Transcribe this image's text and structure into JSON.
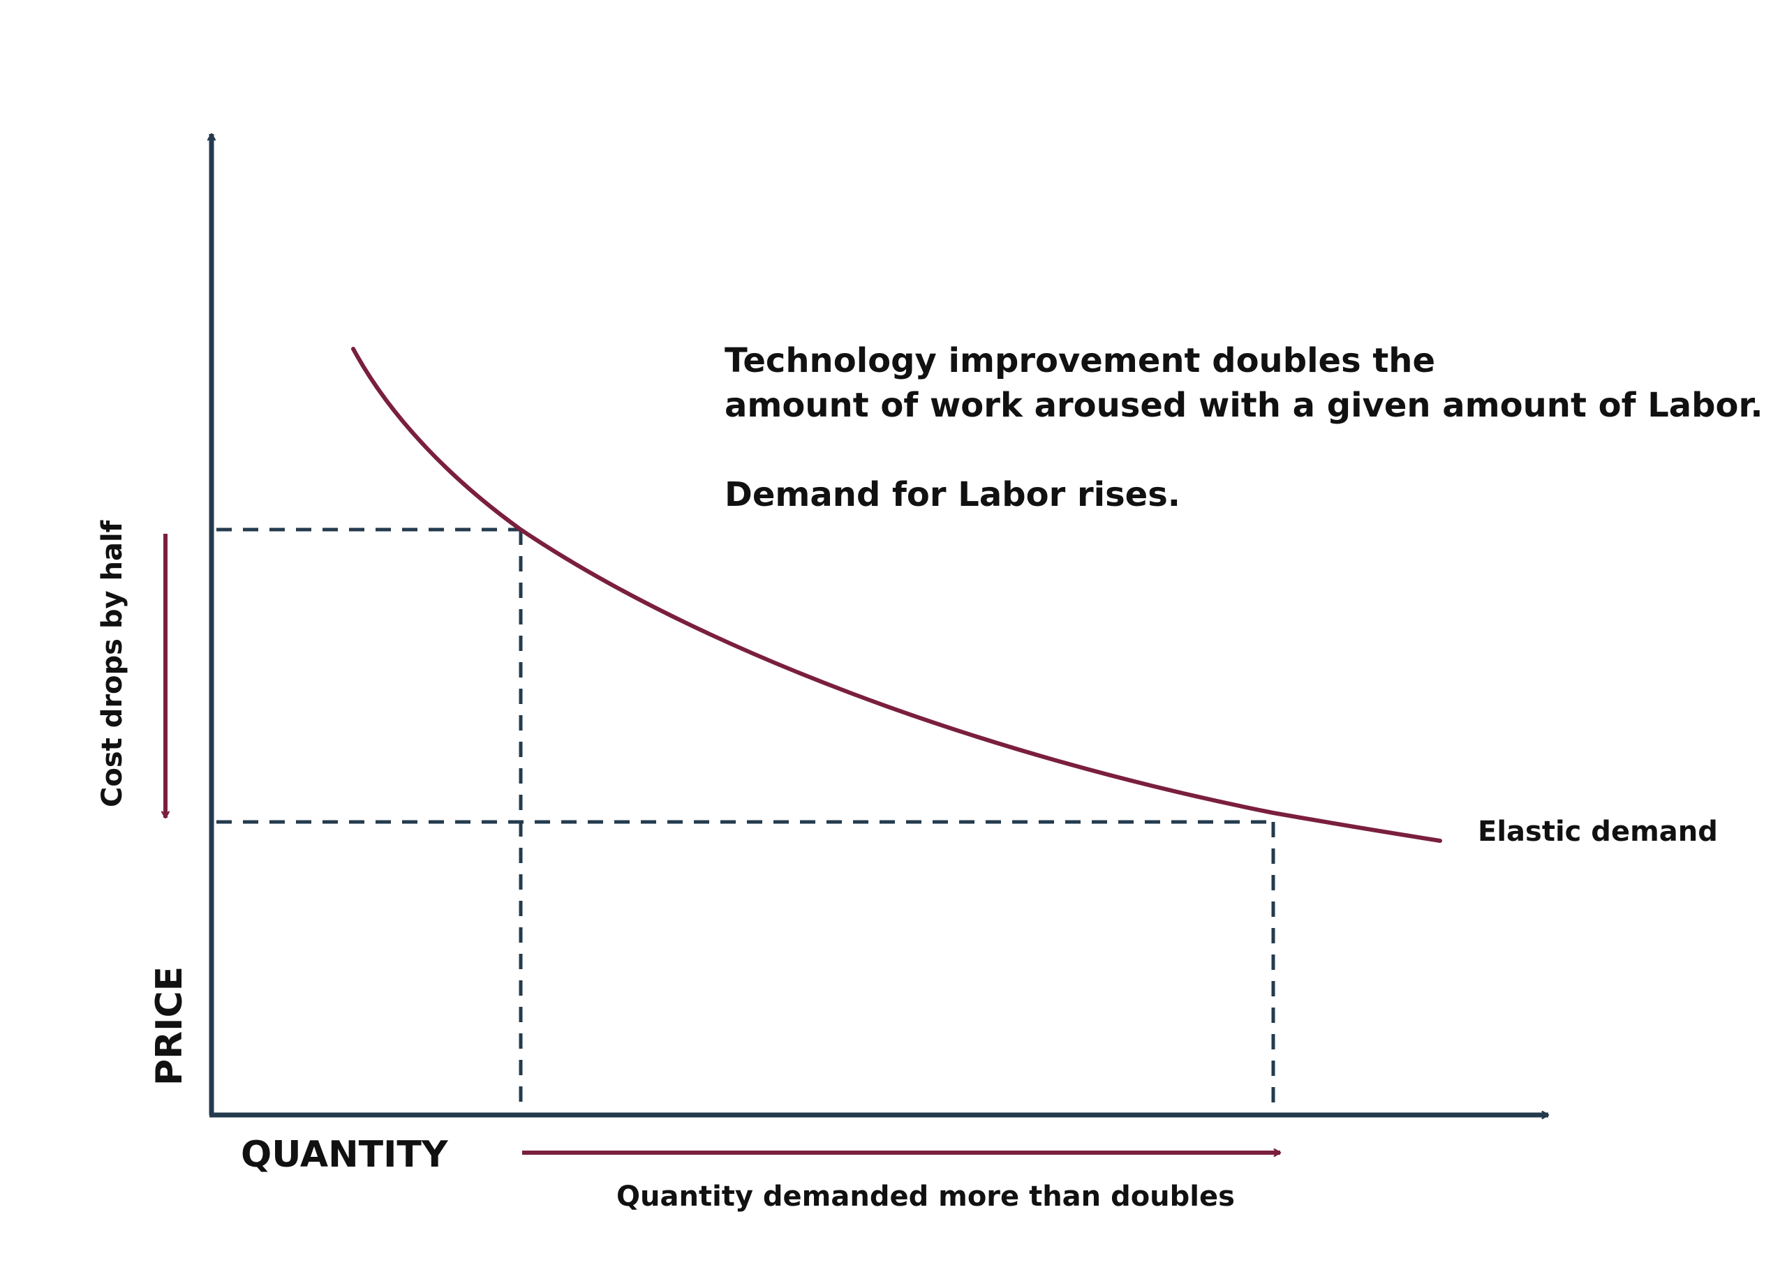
{
  "diagram": {
    "y_axis_label": "PRICE",
    "x_axis_label": "QUANTITY",
    "curve_label": "Elastic demand",
    "price_change_label": "Cost drops by half",
    "quantity_change_label": "Quantity demanded more than doubles",
    "annotation": {
      "line1": "Technology improvement doubles the",
      "line2": "amount of work aroused with a given amount of Labor.",
      "line3": "Demand for Labor rises."
    },
    "colors": {
      "axis": "#243b4e",
      "curve": "#7a1f3d",
      "guide": "#243b4e",
      "text": "#111111"
    }
  }
}
